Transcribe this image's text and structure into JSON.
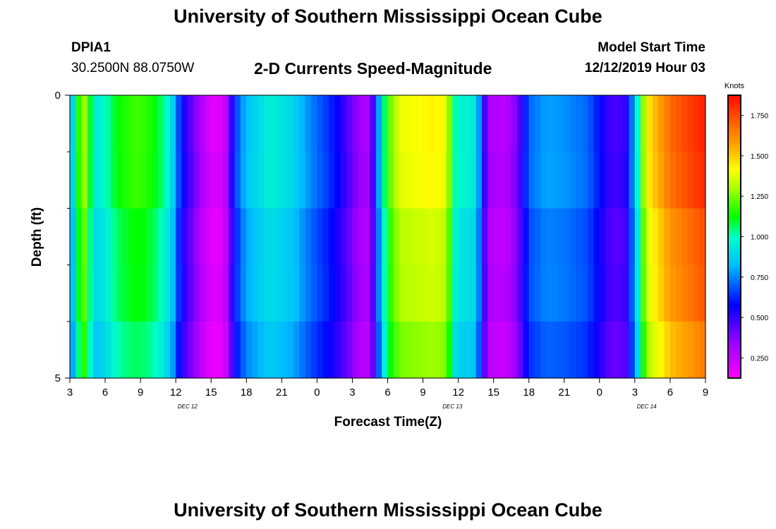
{
  "header": {
    "title": "University of Southern Mississippi Ocean Cube",
    "footer_title": "University of Southern Mississippi Ocean Cube",
    "station_id": "DPIA1",
    "station_coords": "30.2500N 88.0750W",
    "chart_title": "2-D Currents Speed-Magnitude",
    "model_start_label": "Model Start Time",
    "model_start_value": "12/12/2019 Hour 03"
  },
  "chart_data": {
    "type": "heatmap",
    "title": "2-D Currents Speed-Magnitude",
    "xlabel": "Forecast Time(Z)",
    "ylabel": "Depth (ft)",
    "x_unit": "hours since 12/12/2019 03Z",
    "x_range": [
      0,
      54
    ],
    "x_ticks": [
      {
        "hour": 0,
        "label": "3"
      },
      {
        "hour": 3,
        "label": "6"
      },
      {
        "hour": 6,
        "label": "9"
      },
      {
        "hour": 9,
        "label": "12"
      },
      {
        "hour": 12,
        "label": "15"
      },
      {
        "hour": 15,
        "label": "18"
      },
      {
        "hour": 18,
        "label": "21"
      },
      {
        "hour": 21,
        "label": "0"
      },
      {
        "hour": 24,
        "label": "3"
      },
      {
        "hour": 27,
        "label": "6"
      },
      {
        "hour": 30,
        "label": "9"
      },
      {
        "hour": 33,
        "label": "12"
      },
      {
        "hour": 36,
        "label": "15"
      },
      {
        "hour": 39,
        "label": "18"
      },
      {
        "hour": 42,
        "label": "21"
      },
      {
        "hour": 45,
        "label": "0"
      },
      {
        "hour": 48,
        "label": "3"
      },
      {
        "hour": 51,
        "label": "6"
      },
      {
        "hour": 54,
        "label": "9"
      }
    ],
    "date_labels": [
      {
        "hour": 10,
        "label": "DEC 12"
      },
      {
        "hour": 32.5,
        "label": "DEC 13"
      },
      {
        "hour": 49,
        "label": "DEC 14"
      }
    ],
    "y_range": [
      0,
      5
    ],
    "y_ticks": [
      {
        "value": 0,
        "label": "0"
      },
      {
        "value": 5,
        "label": "5"
      }
    ],
    "y_minor_ticks": [
      1,
      2,
      3,
      4
    ],
    "depth_rows": 5,
    "colorbar": {
      "unit": "Knots",
      "range": [
        0.125,
        1.875
      ],
      "ticks": [
        0.25,
        0.5,
        0.75,
        1.0,
        1.25,
        1.5,
        1.75
      ],
      "tick_labels": [
        "0.250",
        "0.500",
        "0.750",
        "1.000",
        "1.250",
        "1.500",
        "1.750"
      ]
    },
    "speed_profile": [
      [
        0,
        0.8
      ],
      [
        0.5,
        1.0
      ],
      [
        1,
        1.35
      ],
      [
        1.5,
        1.25
      ],
      [
        2,
        0.95
      ],
      [
        3,
        1.0
      ],
      [
        4,
        1.13
      ],
      [
        5,
        1.18
      ],
      [
        6,
        1.2
      ],
      [
        7,
        1.15
      ],
      [
        8,
        1.05
      ],
      [
        8.7,
        0.9
      ],
      [
        9.2,
        0.7
      ],
      [
        9.7,
        0.55
      ],
      [
        10.5,
        0.42
      ],
      [
        11.5,
        0.25
      ],
      [
        12.5,
        0.18
      ],
      [
        13.3,
        0.28
      ],
      [
        14,
        0.65
      ],
      [
        15,
        0.85
      ],
      [
        17,
        0.97
      ],
      [
        19,
        0.9
      ],
      [
        20,
        0.8
      ],
      [
        21,
        0.72
      ],
      [
        22,
        0.65
      ],
      [
        23,
        0.55
      ],
      [
        24,
        0.42
      ],
      [
        24.5,
        0.35
      ],
      [
        25.2,
        0.3
      ],
      [
        25.8,
        0.5
      ],
      [
        26.4,
        0.9
      ],
      [
        27,
        1.2
      ],
      [
        28,
        1.4
      ],
      [
        31,
        1.45
      ],
      [
        32,
        1.4
      ],
      [
        32.4,
        1.2
      ],
      [
        32.8,
        1.0
      ],
      [
        34.5,
        0.95
      ],
      [
        35.2,
        0.5
      ],
      [
        35.8,
        0.3
      ],
      [
        37,
        0.28
      ],
      [
        38,
        0.4
      ],
      [
        39,
        0.72
      ],
      [
        40.5,
        0.8
      ],
      [
        42,
        0.78
      ],
      [
        44,
        0.72
      ],
      [
        45,
        0.6
      ],
      [
        46,
        0.48
      ],
      [
        47.2,
        0.5
      ],
      [
        48,
        0.85
      ],
      [
        49,
        1.45
      ],
      [
        51,
        1.7
      ],
      [
        54,
        1.85
      ]
    ]
  }
}
